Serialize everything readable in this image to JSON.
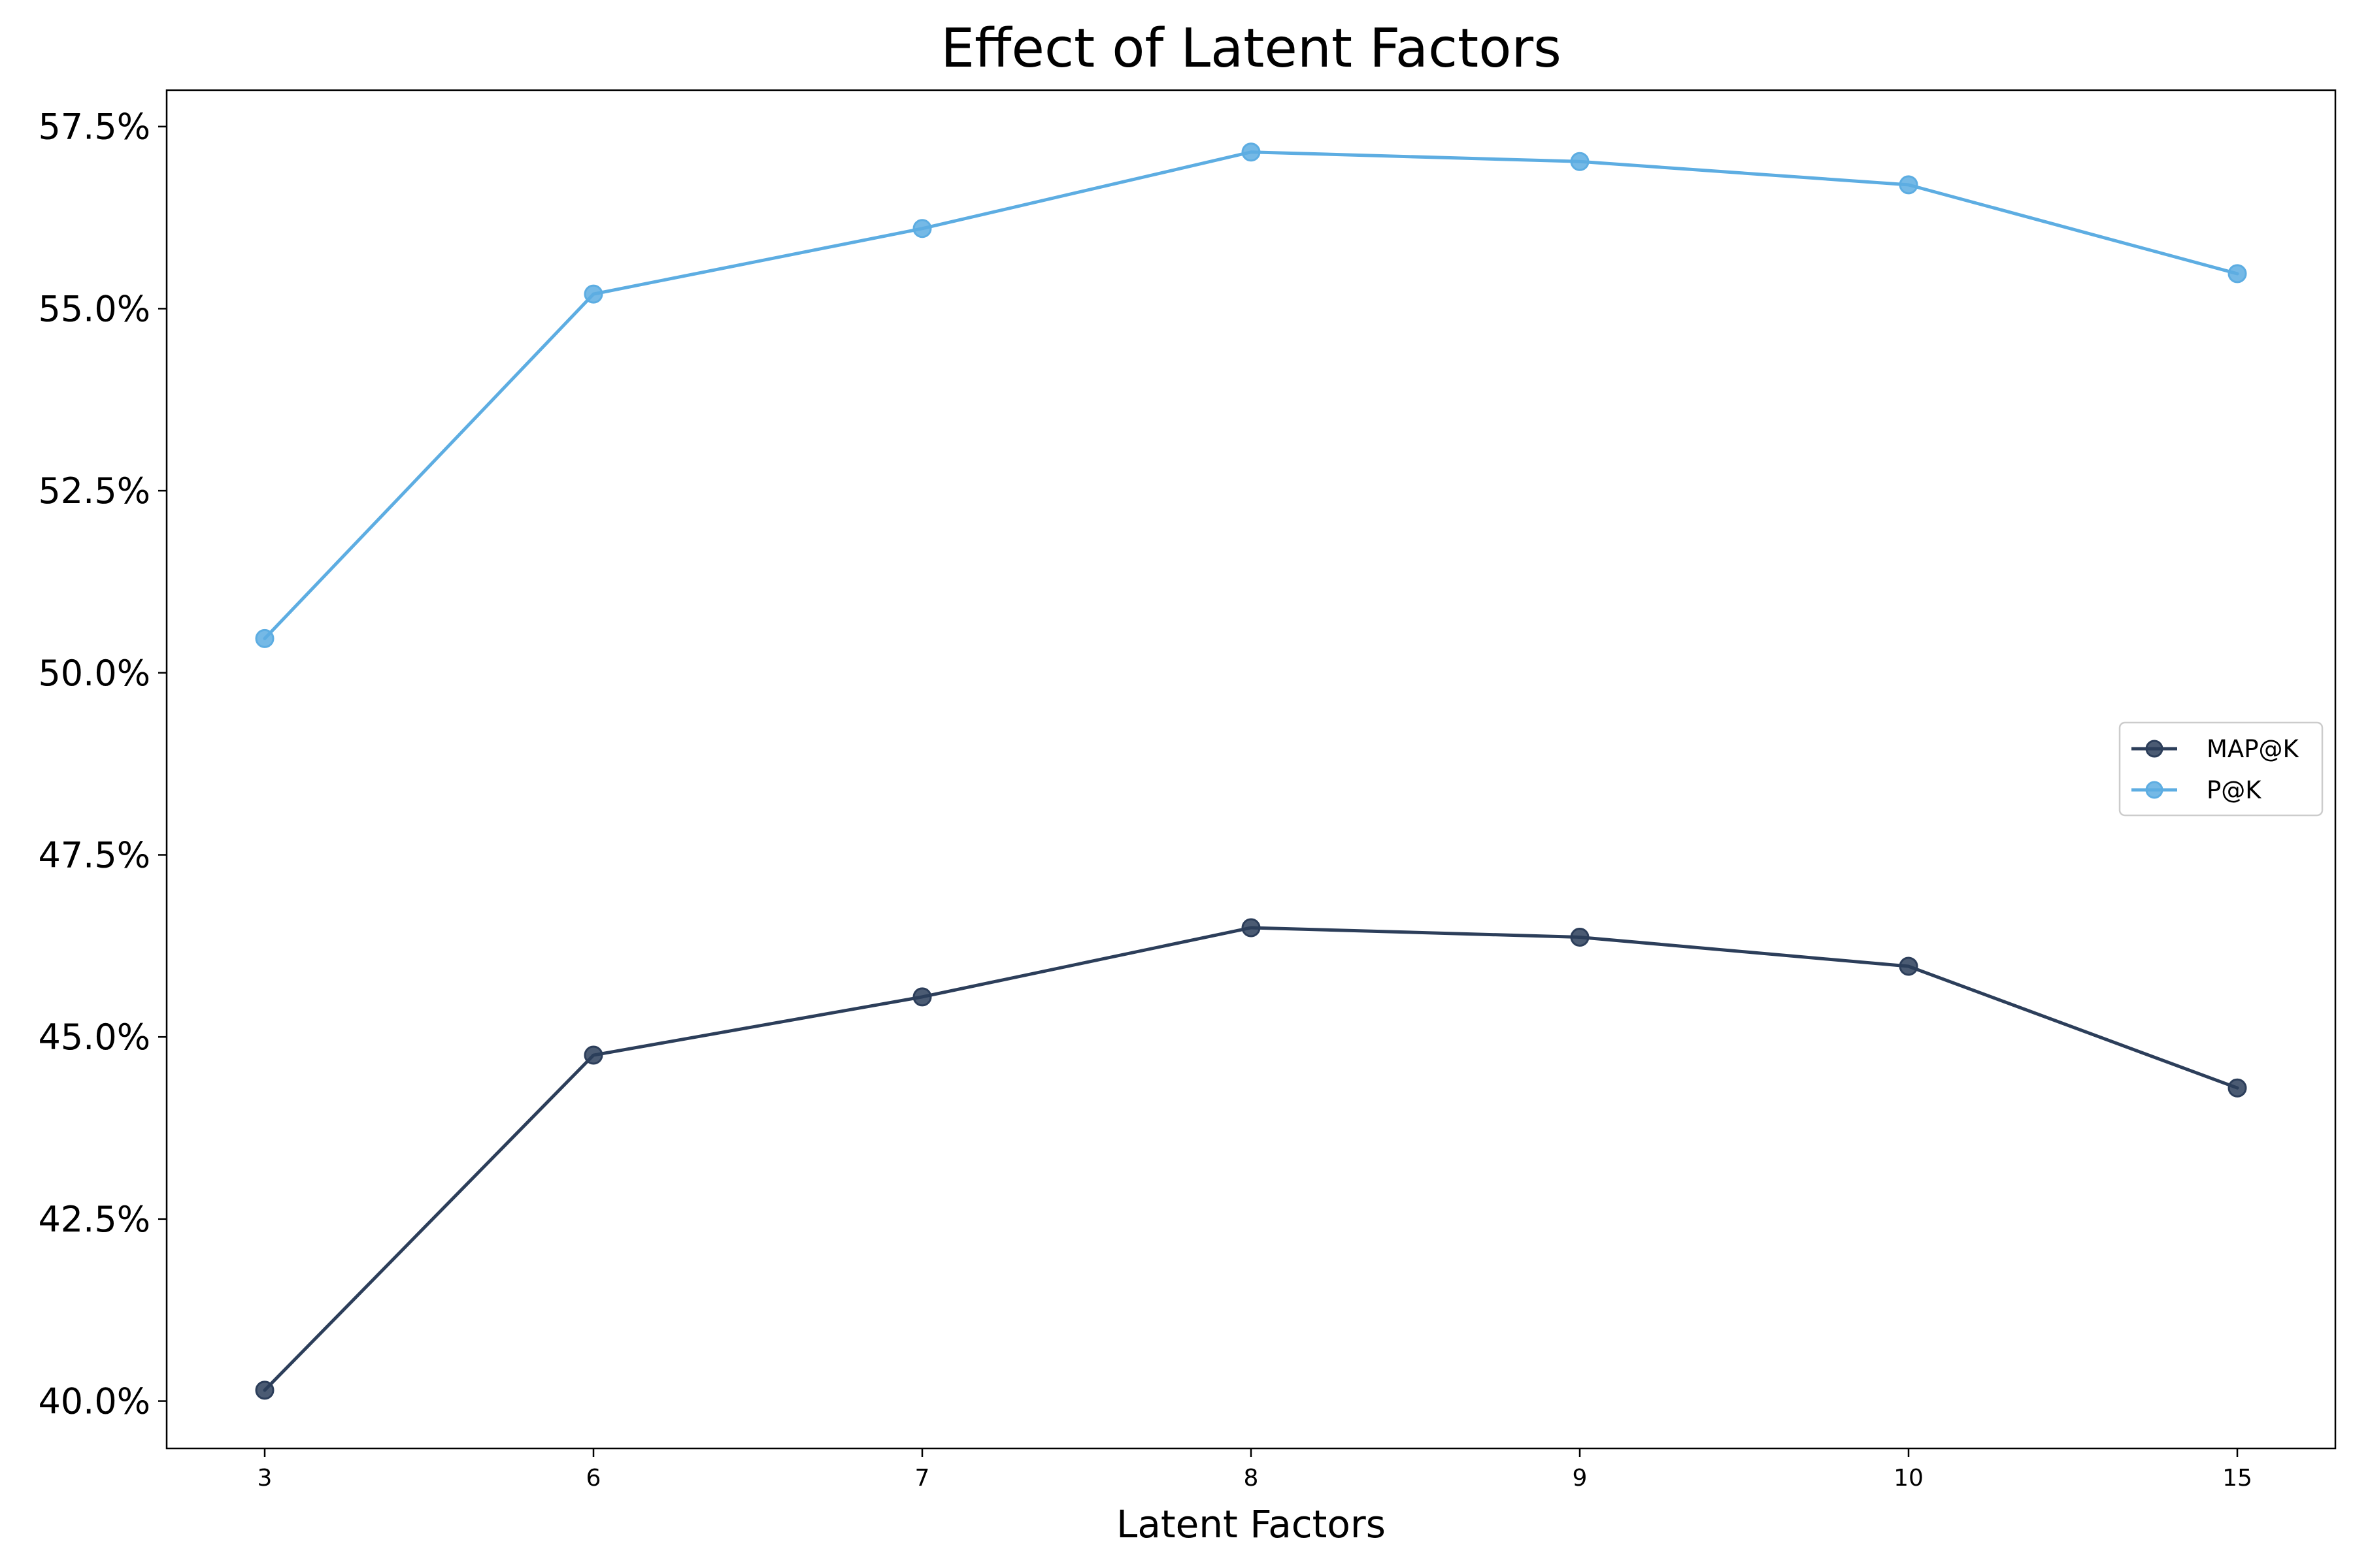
{
  "chart_data": {
    "type": "line",
    "title": "Effect of Latent Factors",
    "xlabel": "Latent Factors",
    "ylabel": "",
    "categories": [
      "3",
      "6",
      "7",
      "8",
      "9",
      "10",
      "15"
    ],
    "ylim": [
      39.35,
      58.0
    ],
    "y_ticks": [
      40.0,
      42.5,
      45.0,
      47.5,
      50.0,
      52.5,
      55.0,
      57.5
    ],
    "y_tick_labels": [
      "40.0%",
      "42.5%",
      "45.0%",
      "47.5%",
      "50.0%",
      "52.5%",
      "55.0%",
      "57.5%"
    ],
    "grid": false,
    "legend_position": "center-right",
    "series": [
      {
        "name": "MAP@K",
        "color": "#2c3e5a",
        "values": [
          40.15,
          44.75,
          45.55,
          46.5,
          46.37,
          45.97,
          44.3
        ]
      },
      {
        "name": "P@K",
        "color": "#5dade2",
        "values": [
          50.47,
          55.2,
          56.1,
          57.15,
          57.02,
          56.7,
          55.48
        ]
      }
    ]
  }
}
